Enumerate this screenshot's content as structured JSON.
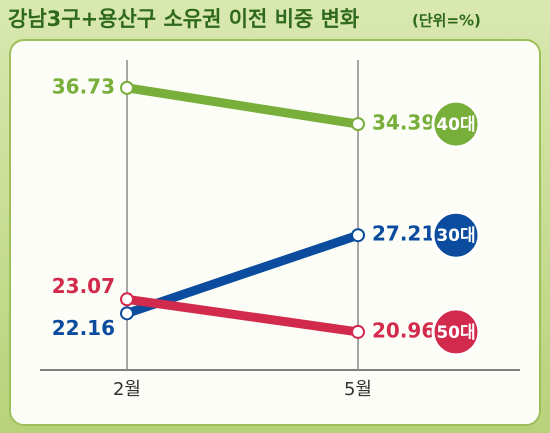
{
  "chart_data": {
    "type": "line",
    "title": "강남3구+용산구 소유권 이전 비중 변화",
    "unit": "(단위=%)",
    "categories": [
      "2월",
      "5월"
    ],
    "series": [
      {
        "name": "40대",
        "color": "#78ae3a",
        "values": [
          36.73,
          34.39
        ]
      },
      {
        "name": "30대",
        "color": "#0b4c9e",
        "values": [
          22.16,
          27.21
        ]
      },
      {
        "name": "50대",
        "color": "#d22a4c",
        "values": [
          23.07,
          20.96
        ]
      }
    ],
    "ylim": [
      18.5,
      39.5
    ]
  }
}
